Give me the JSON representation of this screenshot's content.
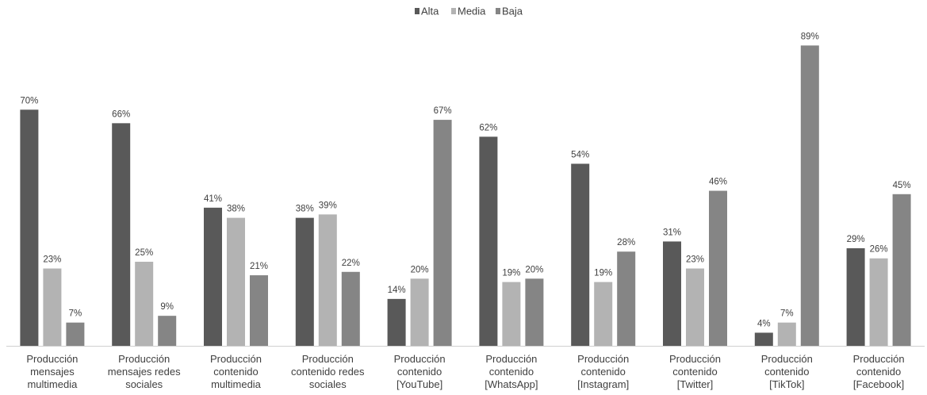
{
  "chart_data": {
    "type": "bar",
    "categories": [
      "Producción mensajes multimedia",
      "Producción mensajes redes sociales",
      "Producción contenido multimedia",
      "Producción contenido redes sociales",
      "Producción contenido [YouTube]",
      "Producción contenido [WhatsApp]",
      "Producción contenido [Instagram]",
      "Producción contenido [Twitter]",
      "Producción contenido [TikTok]",
      "Producción contenido [Facebook]"
    ],
    "category_lines": [
      [
        "Producción",
        "mensajes",
        "multimedia"
      ],
      [
        "Producción",
        "mensajes redes",
        "sociales"
      ],
      [
        "Producción",
        "contenido",
        "multimedia"
      ],
      [
        "Producción",
        "contenido redes",
        "sociales"
      ],
      [
        "Producción",
        "contenido",
        "[YouTube]"
      ],
      [
        "Producción",
        "contenido",
        "[WhatsApp]"
      ],
      [
        "Producción",
        "contenido",
        "[Instagram]"
      ],
      [
        "Producción",
        "contenido",
        "[Twitter]"
      ],
      [
        "Producción",
        "contenido",
        "[TikTok]"
      ],
      [
        "Producción",
        "contenido",
        "[Facebook]"
      ]
    ],
    "series": [
      {
        "name": "Alta",
        "color": "#595959",
        "values": [
          70,
          66,
          41,
          38,
          14,
          62,
          54,
          31,
          4,
          29
        ],
        "labels": [
          "70%",
          "66%",
          "41%",
          "38%",
          "14%",
          "62%",
          "54%",
          "31%",
          "4%",
          "29%"
        ]
      },
      {
        "name": "Media",
        "color": "#b3b3b3",
        "values": [
          23,
          25,
          38,
          39,
          20,
          19,
          19,
          23,
          7,
          26
        ],
        "labels": [
          "23%",
          "25%",
          "38%",
          "39%",
          "20%",
          "19%",
          "19%",
          "23%",
          "7%",
          "26%"
        ]
      },
      {
        "name": "Baja",
        "color": "#858585",
        "values": [
          7,
          9,
          21,
          22,
          67,
          20,
          28,
          46,
          89,
          45
        ],
        "labels": [
          "7%",
          "9%",
          "21%",
          "22%",
          "67%",
          "20%",
          "28%",
          "46%",
          "89%",
          "45%"
        ]
      }
    ],
    "ylim": [
      0,
      100
    ],
    "y_unit": "%",
    "grid": false,
    "legend_position": "top-center",
    "axis_color": "#d0d0d0",
    "label_color": "#404040"
  }
}
